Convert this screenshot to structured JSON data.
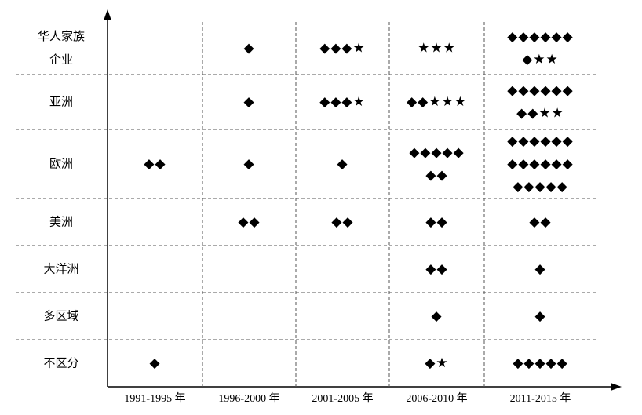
{
  "rows": [
    {
      "label": [
        "华人家族",
        "企业"
      ],
      "cells": [
        [],
        [
          "◆"
        ],
        [
          "◆◆◆★"
        ],
        [
          "★★★"
        ],
        [
          "◆◆◆◆◆◆",
          "◆★★"
        ]
      ]
    },
    {
      "label": [
        "亚洲"
      ],
      "cells": [
        [],
        [
          "◆"
        ],
        [
          "◆◆◆★"
        ],
        [
          "◆◆★★★"
        ],
        [
          "◆◆◆◆◆◆",
          "◆◆★★"
        ]
      ]
    },
    {
      "label": [
        "欧洲"
      ],
      "cells": [
        [
          "◆◆"
        ],
        [
          "◆"
        ],
        [
          "◆"
        ],
        [
          "◆◆◆◆◆",
          "◆◆"
        ],
        [
          "◆◆◆◆◆◆",
          "◆◆◆◆◆◆",
          "◆◆◆◆◆"
        ]
      ]
    },
    {
      "label": [
        "美洲"
      ],
      "cells": [
        [],
        [
          "◆◆"
        ],
        [
          "◆◆"
        ],
        [
          "◆◆"
        ],
        [
          "◆◆"
        ]
      ]
    },
    {
      "label": [
        "大洋洲"
      ],
      "cells": [
        [],
        [],
        [],
        [
          "◆◆"
        ],
        [
          "◆"
        ]
      ]
    },
    {
      "label": [
        "多区域"
      ],
      "cells": [
        [],
        [],
        [],
        [
          "◆"
        ],
        [
          "◆"
        ]
      ]
    },
    {
      "label": [
        "不区分"
      ],
      "cells": [
        [
          "◆"
        ],
        [],
        [],
        [
          "◆★"
        ],
        [
          "◆◆◆◆◆"
        ]
      ]
    }
  ],
  "columns": [
    "1991-1995 年",
    "1996-2000 年",
    "2001-2005 年",
    "2006-2010 年",
    "2011-2015 年"
  ]
}
